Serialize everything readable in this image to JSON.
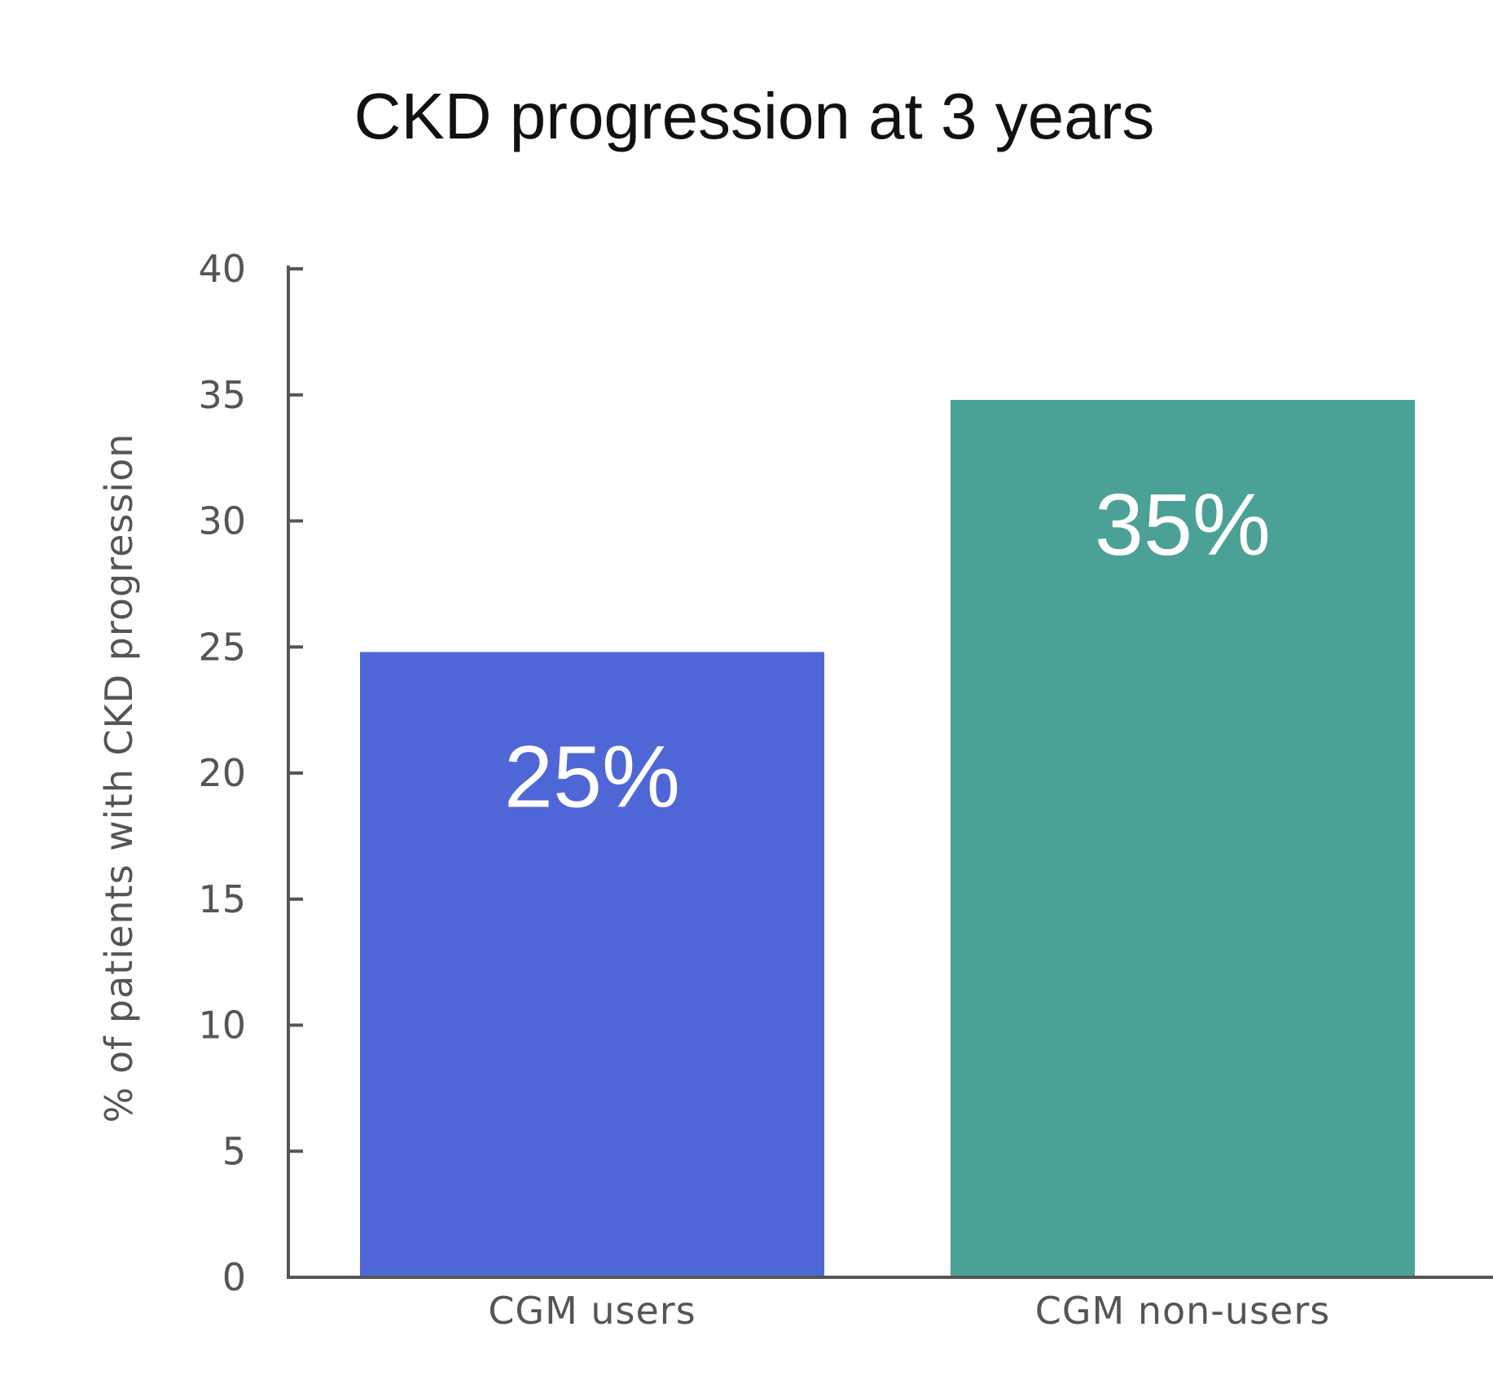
{
  "chart_data": {
    "type": "bar",
    "title": "CKD progression at 3 years",
    "xlabel": "",
    "ylabel": "% of patients with CKD progression",
    "categories": [
      "CGM users",
      "CGM non-users"
    ],
    "values": [
      24.8,
      34.8
    ],
    "data_labels": [
      "25%",
      "35%"
    ],
    "bar_colors": [
      "#4f67d6",
      "#4ba195"
    ],
    "ylim": [
      0,
      40
    ],
    "yticks": [
      0,
      5,
      10,
      15,
      20,
      25,
      30,
      35,
      40
    ],
    "ytick_labels": [
      "0",
      "5",
      "10",
      "15",
      "20",
      "25",
      "30",
      "35",
      "40"
    ],
    "grid": false,
    "axis_color": "#555555",
    "label_color": "#555555",
    "data_label_color": "#ffffff"
  }
}
